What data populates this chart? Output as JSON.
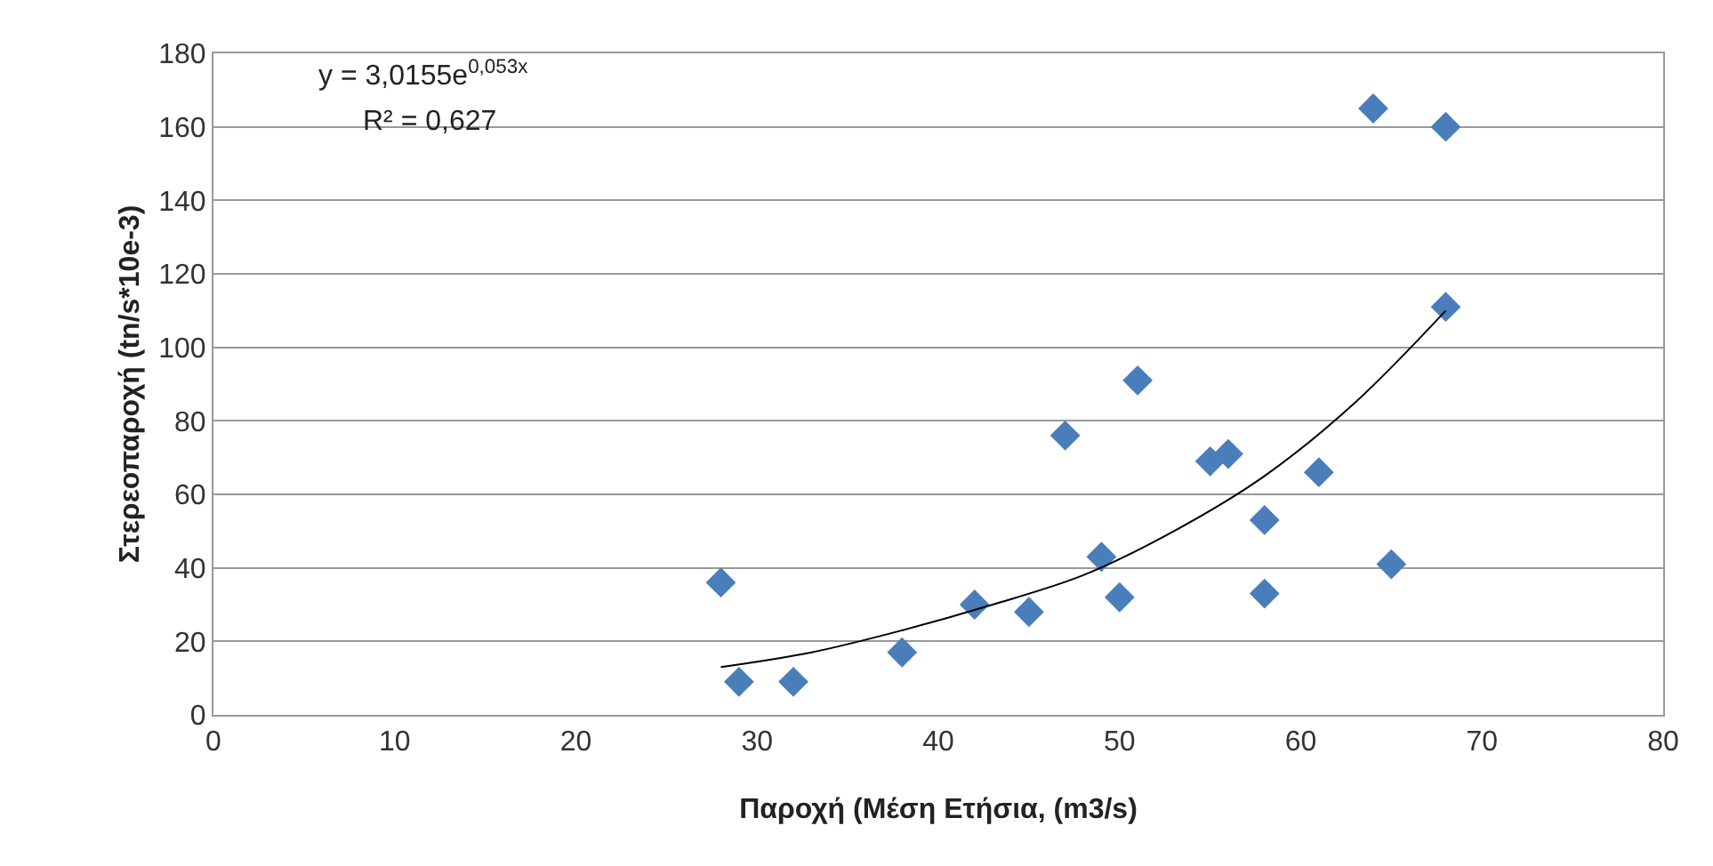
{
  "chart_data": {
    "type": "scatter",
    "xlabel": "Παροχή (Μέση Ετήσια, (m3/s)",
    "ylabel": "Στερεοπαροχή (tn/s*10e-3)",
    "annotations": [
      "y = 3,0155e$^{0,053x}$",
      "R² = 0,627"
    ],
    "series": [
      {
        "color": "#4a7ebb",
        "marker": "diamond",
        "x": [
          28,
          29,
          32,
          38,
          42,
          45,
          47,
          49,
          50,
          51,
          55,
          56,
          58,
          58,
          61,
          64,
          65,
          68,
          68
        ],
        "values": [
          36,
          9,
          9,
          17,
          30,
          28,
          76,
          43,
          32,
          91,
          69,
          71,
          53,
          33,
          66,
          165,
          41,
          160,
          111
        ]
      },
      {
        "type": "line",
        "color": "#000000",
        "marker": "none",
        "line_style": "solid",
        "x": [
          28,
          33,
          38,
          43,
          48,
          53,
          58,
          63,
          68
        ],
        "values": [
          13,
          17,
          23,
          30,
          38,
          50,
          65,
          85,
          110
        ]
      }
    ],
    "xlim": [
      0,
      80
    ],
    "xticks": [
      0,
      10,
      20,
      30,
      40,
      50,
      60,
      70,
      80
    ],
    "ylim": [
      0,
      180
    ],
    "yticks": [
      0,
      20,
      40,
      60,
      80,
      100,
      120,
      140,
      160,
      180
    ],
    "grid": "y"
  }
}
